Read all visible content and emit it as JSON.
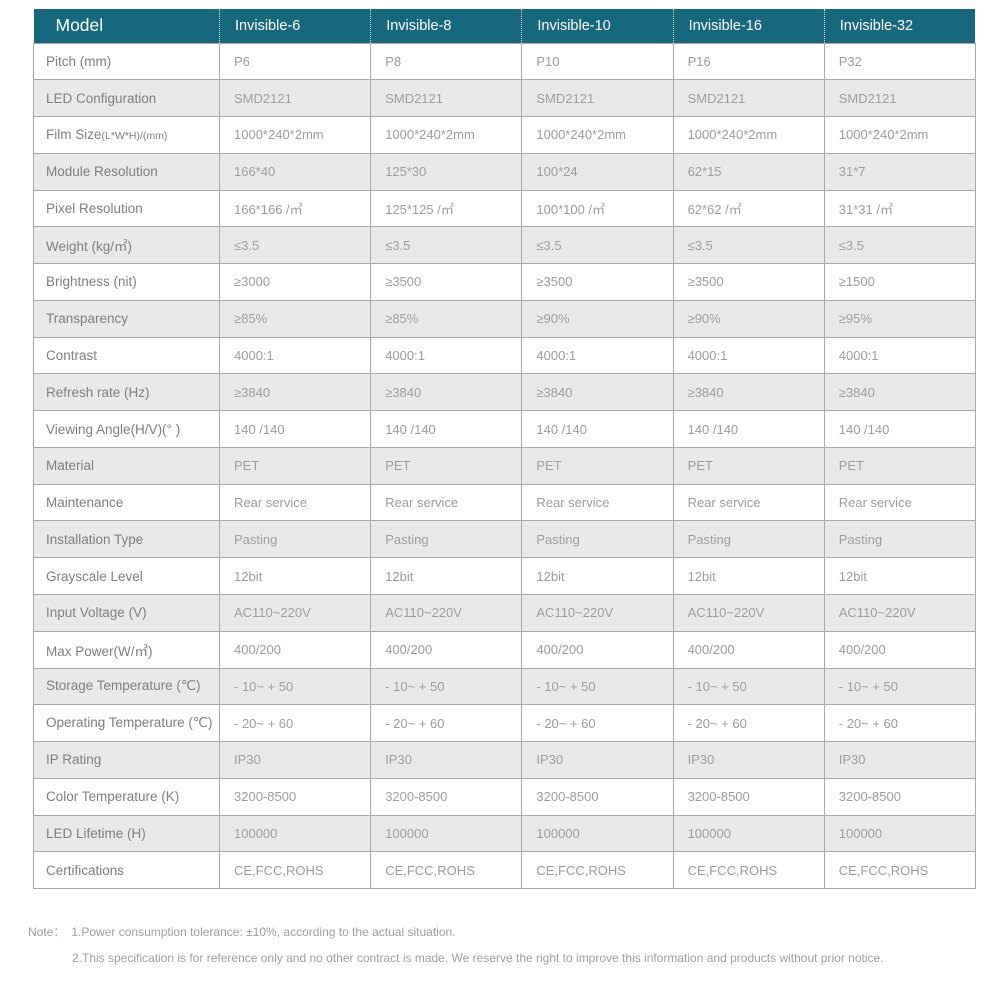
{
  "colors": {
    "header_bg": "#17687f",
    "header_text": "#ffffff",
    "alt_row_bg": "#e9e9e9",
    "border": "#a8a8a8",
    "label_text": "#7e7e7e",
    "value_text": "#9c9c9c",
    "note_text": "#9e9e9e"
  },
  "table": {
    "header": {
      "model_label": "Model",
      "columns": [
        "Invisible-6",
        "Invisible-8",
        "Invisible-10",
        "Invisible-16",
        "Invisible-32"
      ]
    },
    "rows": [
      {
        "label": "Pitch (mm)",
        "values": [
          "P6",
          "P8",
          "P10",
          "P16",
          "P32"
        ]
      },
      {
        "label": "LED Configuration",
        "values": [
          "SMD2121",
          "SMD2121",
          "SMD2121",
          "SMD2121",
          "SMD2121"
        ]
      },
      {
        "label": "Film Size",
        "label_small": "(L*W*H)/(mm)",
        "values": [
          "1000*240*2mm",
          "1000*240*2mm",
          "1000*240*2mm",
          "1000*240*2mm",
          "1000*240*2mm"
        ]
      },
      {
        "label": "Module Resolution",
        "values": [
          "166*40",
          "125*30",
          "100*24",
          "62*15",
          "31*7"
        ]
      },
      {
        "label": "Pixel Resolution",
        "values": [
          "166*166 /㎡",
          "125*125 /㎡",
          "100*100 /㎡",
          "62*62 /㎡",
          "31*31 /㎡"
        ]
      },
      {
        "label": "Weight (kg/㎡)",
        "values": [
          "≤3.5",
          "≤3.5",
          "≤3.5",
          "≤3.5",
          "≤3.5"
        ]
      },
      {
        "label": "Brightness (nit)",
        "values": [
          "≥3000",
          "≥3500",
          "≥3500",
          "≥3500",
          "≥1500"
        ]
      },
      {
        "label": "Transparency",
        "values": [
          "≥85%",
          "≥85%",
          "≥90%",
          "≥90%",
          "≥95%"
        ]
      },
      {
        "label": "Contrast",
        "values": [
          "4000:1",
          "4000:1",
          "4000:1",
          "4000:1",
          "4000:1"
        ]
      },
      {
        "label": "Refresh rate (Hz)",
        "values": [
          "≥3840",
          "≥3840",
          "≥3840",
          "≥3840",
          "≥3840"
        ]
      },
      {
        "label": "Viewing Angle(H/V)(° )",
        "values": [
          "140 /140",
          "140 /140",
          "140 /140",
          "140 /140",
          "140 /140"
        ]
      },
      {
        "label": "Material",
        "values": [
          "PET",
          "PET",
          "PET",
          "PET",
          "PET"
        ]
      },
      {
        "label": "Maintenance",
        "values": [
          "Rear service",
          "Rear service",
          "Rear service",
          "Rear service",
          "Rear service"
        ]
      },
      {
        "label": "Installation Type",
        "values": [
          "Pasting",
          "Pasting",
          "Pasting",
          "Pasting",
          "Pasting"
        ]
      },
      {
        "label": "Grayscale Level",
        "values": [
          "12bit",
          "12bit",
          "12bit",
          "12bit",
          "12bit"
        ]
      },
      {
        "label": "Input Voltage (V)",
        "values": [
          "AC110~220V",
          "AC110~220V",
          "AC110~220V",
          "AC110~220V",
          "AC110~220V"
        ]
      },
      {
        "label": "Max Power(W/㎡)",
        "values": [
          "400/200",
          "400/200",
          "400/200",
          "400/200",
          "400/200"
        ]
      },
      {
        "label": "Storage Temperature (℃)",
        "values": [
          "- 10~ + 50",
          "- 10~ + 50",
          "- 10~ + 50",
          "- 10~ + 50",
          "- 10~ + 50"
        ]
      },
      {
        "label": "Operating Temperature (℃)",
        "values": [
          "- 20~ + 60",
          "- 20~ + 60",
          "- 20~ + 60",
          "- 20~ + 60",
          "- 20~ + 60"
        ]
      },
      {
        "label": "IP Rating",
        "values": [
          "IP30",
          "IP30",
          "IP30",
          "IP30",
          "IP30"
        ]
      },
      {
        "label": "Color Temperature (K)",
        "values": [
          "3200-8500",
          "3200-8500",
          "3200-8500",
          "3200-8500",
          "3200-8500"
        ]
      },
      {
        "label": "LED Lifetime (H)",
        "values": [
          "100000",
          "100000",
          "100000",
          "100000",
          "100000"
        ]
      },
      {
        "label": "Certifications",
        "values": [
          "CE,FCC,ROHS",
          "CE,FCC,ROHS",
          "CE,FCC,ROHS",
          "CE,FCC,ROHS",
          "CE,FCC,ROHS"
        ]
      }
    ]
  },
  "notes": {
    "label": "Note：",
    "items": [
      "1.Power consumption tolerance: ±10%, according to the actual situation.",
      "2.This specification is for reference only and no other contract is made. We reserve the right to improve this information and products without prior notice."
    ]
  }
}
